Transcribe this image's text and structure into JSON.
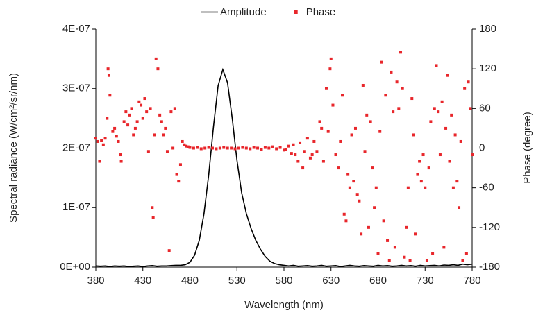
{
  "chart_data": {
    "type": "line",
    "xlabel": "Wavelength (nm)",
    "ylabel": "Spectral radiance (W/cm²/sr/nm)",
    "y2label": "Phase (degree)",
    "legend": "top",
    "grid": false,
    "xlim": [
      380,
      780
    ],
    "xticks": [
      380,
      430,
      480,
      530,
      580,
      630,
      680,
      730,
      780
    ],
    "ylim": [
      0,
      4e-07
    ],
    "yticks": [
      {
        "value": 0,
        "label": "0E+00"
      },
      {
        "value": 1e-07,
        "label": "1E-07"
      },
      {
        "value": 2e-07,
        "label": "2E-07"
      },
      {
        "value": 3e-07,
        "label": "3E-07"
      },
      {
        "value": 4e-07,
        "label": "4E-07"
      }
    ],
    "y2lim": [
      -180,
      180
    ],
    "y2ticks": [
      -180,
      -120,
      -60,
      0,
      60,
      120,
      180
    ],
    "series": [
      {
        "name": "Amplitude",
        "type": "line",
        "color": "#000000",
        "x": [
          380,
          385,
          390,
          395,
          400,
          405,
          410,
          415,
          420,
          425,
          430,
          435,
          440,
          445,
          450,
          455,
          460,
          465,
          470,
          475,
          480,
          485,
          490,
          495,
          500,
          505,
          510,
          515,
          520,
          525,
          530,
          535,
          540,
          545,
          550,
          555,
          560,
          565,
          570,
          575,
          580,
          585,
          590,
          595,
          600,
          605,
          610,
          615,
          620,
          625,
          630,
          635,
          640,
          645,
          650,
          655,
          660,
          665,
          670,
          675,
          680,
          685,
          690,
          695,
          700,
          705,
          710,
          715,
          720,
          725,
          730,
          735,
          740,
          745,
          750,
          755,
          760,
          765,
          770,
          775,
          780
        ],
        "values": [
          2e-09,
          1.5e-09,
          2e-09,
          1e-09,
          2e-09,
          1.5e-09,
          2e-09,
          1e-09,
          1.5e-09,
          2e-09,
          1e-09,
          2e-09,
          2.5e-09,
          1.5e-09,
          2e-09,
          2e-09,
          2.5e-09,
          3e-09,
          3e-09,
          4e-09,
          8e-09,
          2e-08,
          4.5e-08,
          9e-08,
          1.55e-07,
          2.35e-07,
          3.05e-07,
          3.32e-07,
          3.1e-07,
          2.5e-07,
          1.8e-07,
          1.25e-07,
          9e-08,
          6.5e-08,
          4.5e-08,
          3e-08,
          1.8e-08,
          1e-08,
          6e-09,
          4e-09,
          3e-09,
          2e-09,
          3e-09,
          1.5e-09,
          2e-09,
          2.5e-09,
          1.5e-09,
          2e-09,
          3e-09,
          1.5e-09,
          2e-09,
          2.5e-09,
          1e-09,
          2e-09,
          3e-09,
          2e-09,
          1.5e-09,
          2.5e-09,
          2e-09,
          1.5e-09,
          3e-09,
          2e-09,
          2.5e-09,
          1.5e-09,
          2e-09,
          3e-09,
          2e-09,
          2.5e-09,
          1.5e-09,
          3e-09,
          2e-09,
          2.5e-09,
          3e-09,
          2e-09,
          3.5e-09,
          3e-09,
          4e-09,
          3e-09,
          5e-09,
          4e-09,
          5e-09
        ]
      },
      {
        "name": "Phase",
        "type": "scatter",
        "axis": "y2",
        "color": "#e8262b",
        "x": [
          380,
          382,
          384,
          386,
          388,
          390,
          392,
          393,
          394,
          395,
          398,
          400,
          402,
          404,
          406,
          407,
          410,
          412,
          414,
          416,
          418,
          420,
          422,
          424,
          426,
          428,
          430,
          432,
          434,
          436,
          438,
          440,
          441,
          442,
          444,
          446,
          448,
          450,
          452,
          454,
          456,
          458,
          460,
          462,
          464,
          466,
          468,
          470,
          472,
          474,
          476,
          478,
          480,
          484,
          488,
          492,
          496,
          500,
          504,
          508,
          512,
          516,
          520,
          524,
          528,
          532,
          536,
          540,
          544,
          548,
          552,
          556,
          560,
          564,
          568,
          572,
          576,
          580,
          582,
          585,
          588,
          590,
          592,
          595,
          597,
          600,
          602,
          605,
          608,
          610,
          612,
          615,
          618,
          620,
          622,
          625,
          627,
          629,
          630,
          632,
          635,
          638,
          640,
          642,
          644,
          646,
          648,
          650,
          652,
          654,
          656,
          658,
          660,
          662,
          664,
          666,
          668,
          670,
          672,
          674,
          676,
          678,
          680,
          682,
          684,
          686,
          688,
          690,
          692,
          694,
          696,
          698,
          700,
          702,
          704,
          706,
          708,
          710,
          712,
          714,
          716,
          718,
          720,
          722,
          724,
          726,
          728,
          730,
          732,
          734,
          736,
          738,
          740,
          742,
          744,
          746,
          748,
          750,
          752,
          754,
          756,
          758,
          760,
          762,
          764,
          766,
          768,
          770,
          772,
          774,
          776,
          778,
          780
        ],
        "values": [
          15,
          10,
          -20,
          12,
          5,
          15,
          45,
          120,
          110,
          80,
          25,
          30,
          18,
          10,
          -10,
          -20,
          40,
          55,
          35,
          50,
          60,
          20,
          30,
          40,
          70,
          65,
          45,
          75,
          55,
          -5,
          60,
          -90,
          -105,
          20,
          135,
          120,
          50,
          40,
          20,
          30,
          -5,
          -155,
          55,
          0,
          60,
          -40,
          -50,
          -25,
          10,
          5,
          3,
          2,
          1,
          0,
          1,
          -1,
          0,
          1,
          0,
          -1,
          0,
          1,
          0,
          0,
          -1,
          0,
          1,
          0,
          -1,
          1,
          0,
          -2,
          1,
          0,
          2,
          -1,
          1,
          -3,
          -2,
          3,
          -8,
          5,
          -10,
          -20,
          8,
          -30,
          -5,
          15,
          -15,
          -10,
          10,
          -5,
          40,
          30,
          -20,
          90,
          25,
          120,
          135,
          65,
          -10,
          -30,
          10,
          80,
          -100,
          -110,
          -40,
          -60,
          20,
          -50,
          30,
          -70,
          -80,
          -130,
          95,
          -5,
          50,
          -120,
          40,
          -30,
          -90,
          -60,
          -160,
          25,
          130,
          -110,
          80,
          -140,
          -170,
          115,
          55,
          -150,
          100,
          60,
          145,
          90,
          -165,
          -120,
          -60,
          -170,
          75,
          20,
          -130,
          -40,
          -20,
          -50,
          -10,
          -60,
          -170,
          -30,
          40,
          -160,
          60,
          125,
          55,
          -10,
          70,
          -150,
          30,
          110,
          -20,
          50,
          -60,
          20,
          -50,
          -90,
          10,
          -170,
          90,
          -160,
          100,
          60,
          -10
        ]
      }
    ]
  }
}
